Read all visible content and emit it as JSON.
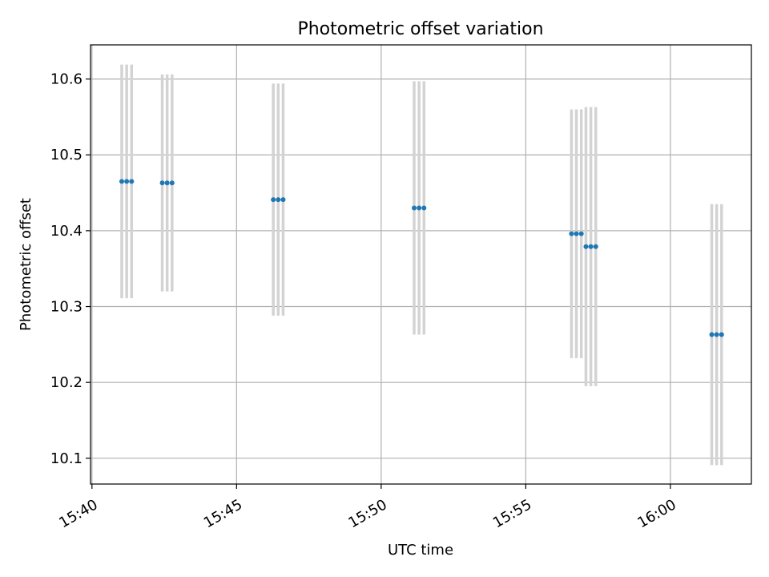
{
  "chart_data": {
    "type": "scatter",
    "title": "Photometric offset variation",
    "xlabel": "UTC time",
    "ylabel": "Photometric offset",
    "grid": true,
    "xlim_minutes": [
      -0.05,
      22.8
    ],
    "ylim": [
      10.066,
      10.645
    ],
    "x_tick_minutes": [
      0,
      5,
      10,
      15,
      20
    ],
    "x_tick_labels": [
      "15:40",
      "15:45",
      "15:50",
      "15:55",
      "16:00"
    ],
    "y_ticks": [
      10.1,
      10.2,
      10.3,
      10.4,
      10.5,
      10.6
    ],
    "y_tick_labels": [
      "10.1",
      "10.2",
      "10.3",
      "10.4",
      "10.5",
      "10.6"
    ],
    "series": [
      {
        "name": "offset",
        "color": "#1f77b4",
        "errorbar_color": "#d3d3d3",
        "points": [
          {
            "t": 1.03,
            "y": 10.465,
            "err": 0.154
          },
          {
            "t": 1.2,
            "y": 10.465,
            "err": 0.154
          },
          {
            "t": 1.37,
            "y": 10.465,
            "err": 0.154
          },
          {
            "t": 2.43,
            "y": 10.463,
            "err": 0.143
          },
          {
            "t": 2.6,
            "y": 10.463,
            "err": 0.143
          },
          {
            "t": 2.77,
            "y": 10.463,
            "err": 0.143
          },
          {
            "t": 6.27,
            "y": 10.441,
            "err": 0.153
          },
          {
            "t": 6.44,
            "y": 10.441,
            "err": 0.153
          },
          {
            "t": 6.61,
            "y": 10.441,
            "err": 0.153
          },
          {
            "t": 11.14,
            "y": 10.43,
            "err": 0.167
          },
          {
            "t": 11.31,
            "y": 10.43,
            "err": 0.167
          },
          {
            "t": 11.48,
            "y": 10.43,
            "err": 0.167
          },
          {
            "t": 16.58,
            "y": 10.396,
            "err": 0.164
          },
          {
            "t": 16.75,
            "y": 10.396,
            "err": 0.164
          },
          {
            "t": 16.92,
            "y": 10.396,
            "err": 0.164
          },
          {
            "t": 17.08,
            "y": 10.379,
            "err": 0.184
          },
          {
            "t": 17.25,
            "y": 10.379,
            "err": 0.184
          },
          {
            "t": 17.42,
            "y": 10.379,
            "err": 0.184
          },
          {
            "t": 21.43,
            "y": 10.263,
            "err": 0.172
          },
          {
            "t": 21.6,
            "y": 10.263,
            "err": 0.172
          },
          {
            "t": 21.77,
            "y": 10.263,
            "err": 0.172
          }
        ]
      }
    ]
  }
}
